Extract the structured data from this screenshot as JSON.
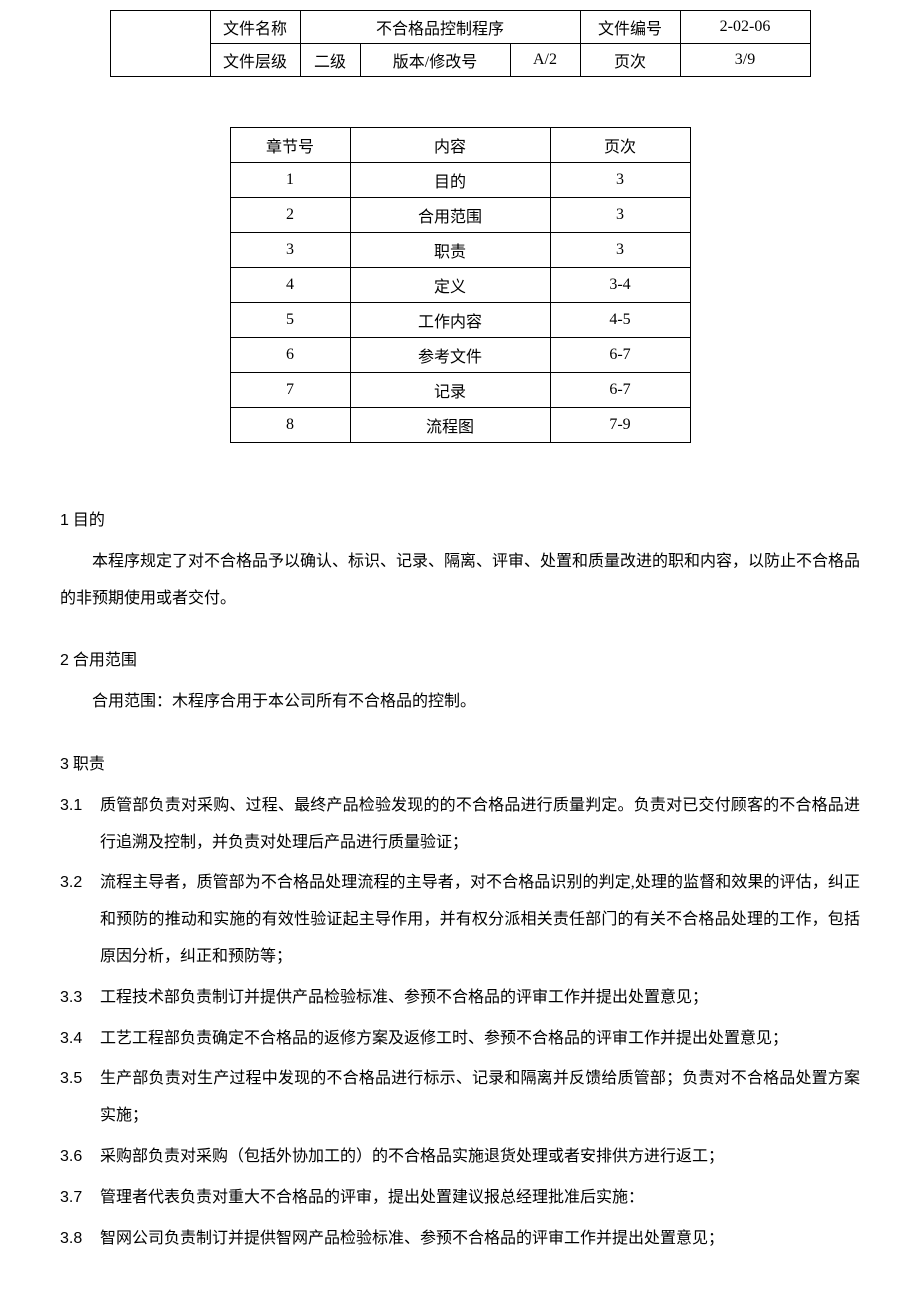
{
  "header": {
    "row1": {
      "label": "文件名称",
      "title": "不合格品控制程序",
      "numLabel": "文件编号",
      "numVal": "2-02-06"
    },
    "row2": {
      "label": "文件层级",
      "levelVal": "二级",
      "revLabel": "版本/修改号",
      "revVal": "A/2",
      "pageLabel": "页次",
      "pageVal": "3/9"
    }
  },
  "toc": {
    "headers": {
      "c1": "章节号",
      "c2": "内容",
      "c3": "页次"
    },
    "rows": [
      {
        "c1": "1",
        "c2": "目的",
        "c3": "3"
      },
      {
        "c1": "2",
        "c2": "合用范围",
        "c3": "3"
      },
      {
        "c1": "3",
        "c2": "职责",
        "c3": "3"
      },
      {
        "c1": "4",
        "c2": "定义",
        "c3": "3-4"
      },
      {
        "c1": "5",
        "c2": "工作内容",
        "c3": "4-5"
      },
      {
        "c1": "6",
        "c2": "参考文件",
        "c3": "6-7"
      },
      {
        "c1": "7",
        "c2": "记录",
        "c3": "6-7"
      },
      {
        "c1": "8",
        "c2": "流程图",
        "c3": "7-9"
      }
    ]
  },
  "sections": {
    "s1": {
      "title_num": "1",
      "title_text": "目的",
      "body": "本程序规定了对不合格品予以确认、标识、记录、隔离、评审、处置和质量改进的职和内容，以防止不合格品的非预期使用或者交付。"
    },
    "s2": {
      "title_num": "2",
      "title_text": "合用范围",
      "body": "合用范围：木程序合用于本公司所有不合格品的控制。"
    },
    "s3": {
      "title_num": "3",
      "title_text": "职责",
      "items": [
        {
          "num": "3.1",
          "text": "质管部负责对采购、过程、最终产品检验发现的的不合格品进行质量判定。负责对已交付顾客的不合格品进行追溯及控制，并负责对处理后产品进行质量验证；"
        },
        {
          "num": "3.2",
          "text": "流程主导者，质管部为不合格品处理流程的主导者，对不合格品识别的判定,处理的监督和效果的评估，纠正和预防的推动和实施的有效性验证起主导作用，并有权分派相关责任部门的有关不合格品处理的工作，包括原因分析，纠正和预防等；"
        },
        {
          "num": "3.3",
          "text": "工程技术部负责制订并提供产品检验标准、参预不合格品的评审工作并提出处置意见；"
        },
        {
          "num": "3.4",
          "text": "工艺工程部负责确定不合格品的返修方案及返修工时、参预不合格品的评审工作并提出处置意见；"
        },
        {
          "num": "3.5",
          "text": "生产部负责对生产过程中发现的不合格品进行标示、记录和隔离并反馈给质管部；负责对不合格品处置方案实施；"
        },
        {
          "num": "3.6",
          "text": "采购部负责对采购（包括外协加工的）的不合格品实施退货处理或者安排供方进行返工；"
        },
        {
          "num": "3.7",
          "text": "管理者代表负责对重大不合格品的评审，提出处置建议报总经理批准后实施："
        },
        {
          "num": "3.8",
          "text": "智网公司负责制订并提供智网产品检验标准、参预不合格品的评审工作并提出处置意见；"
        }
      ]
    }
  }
}
